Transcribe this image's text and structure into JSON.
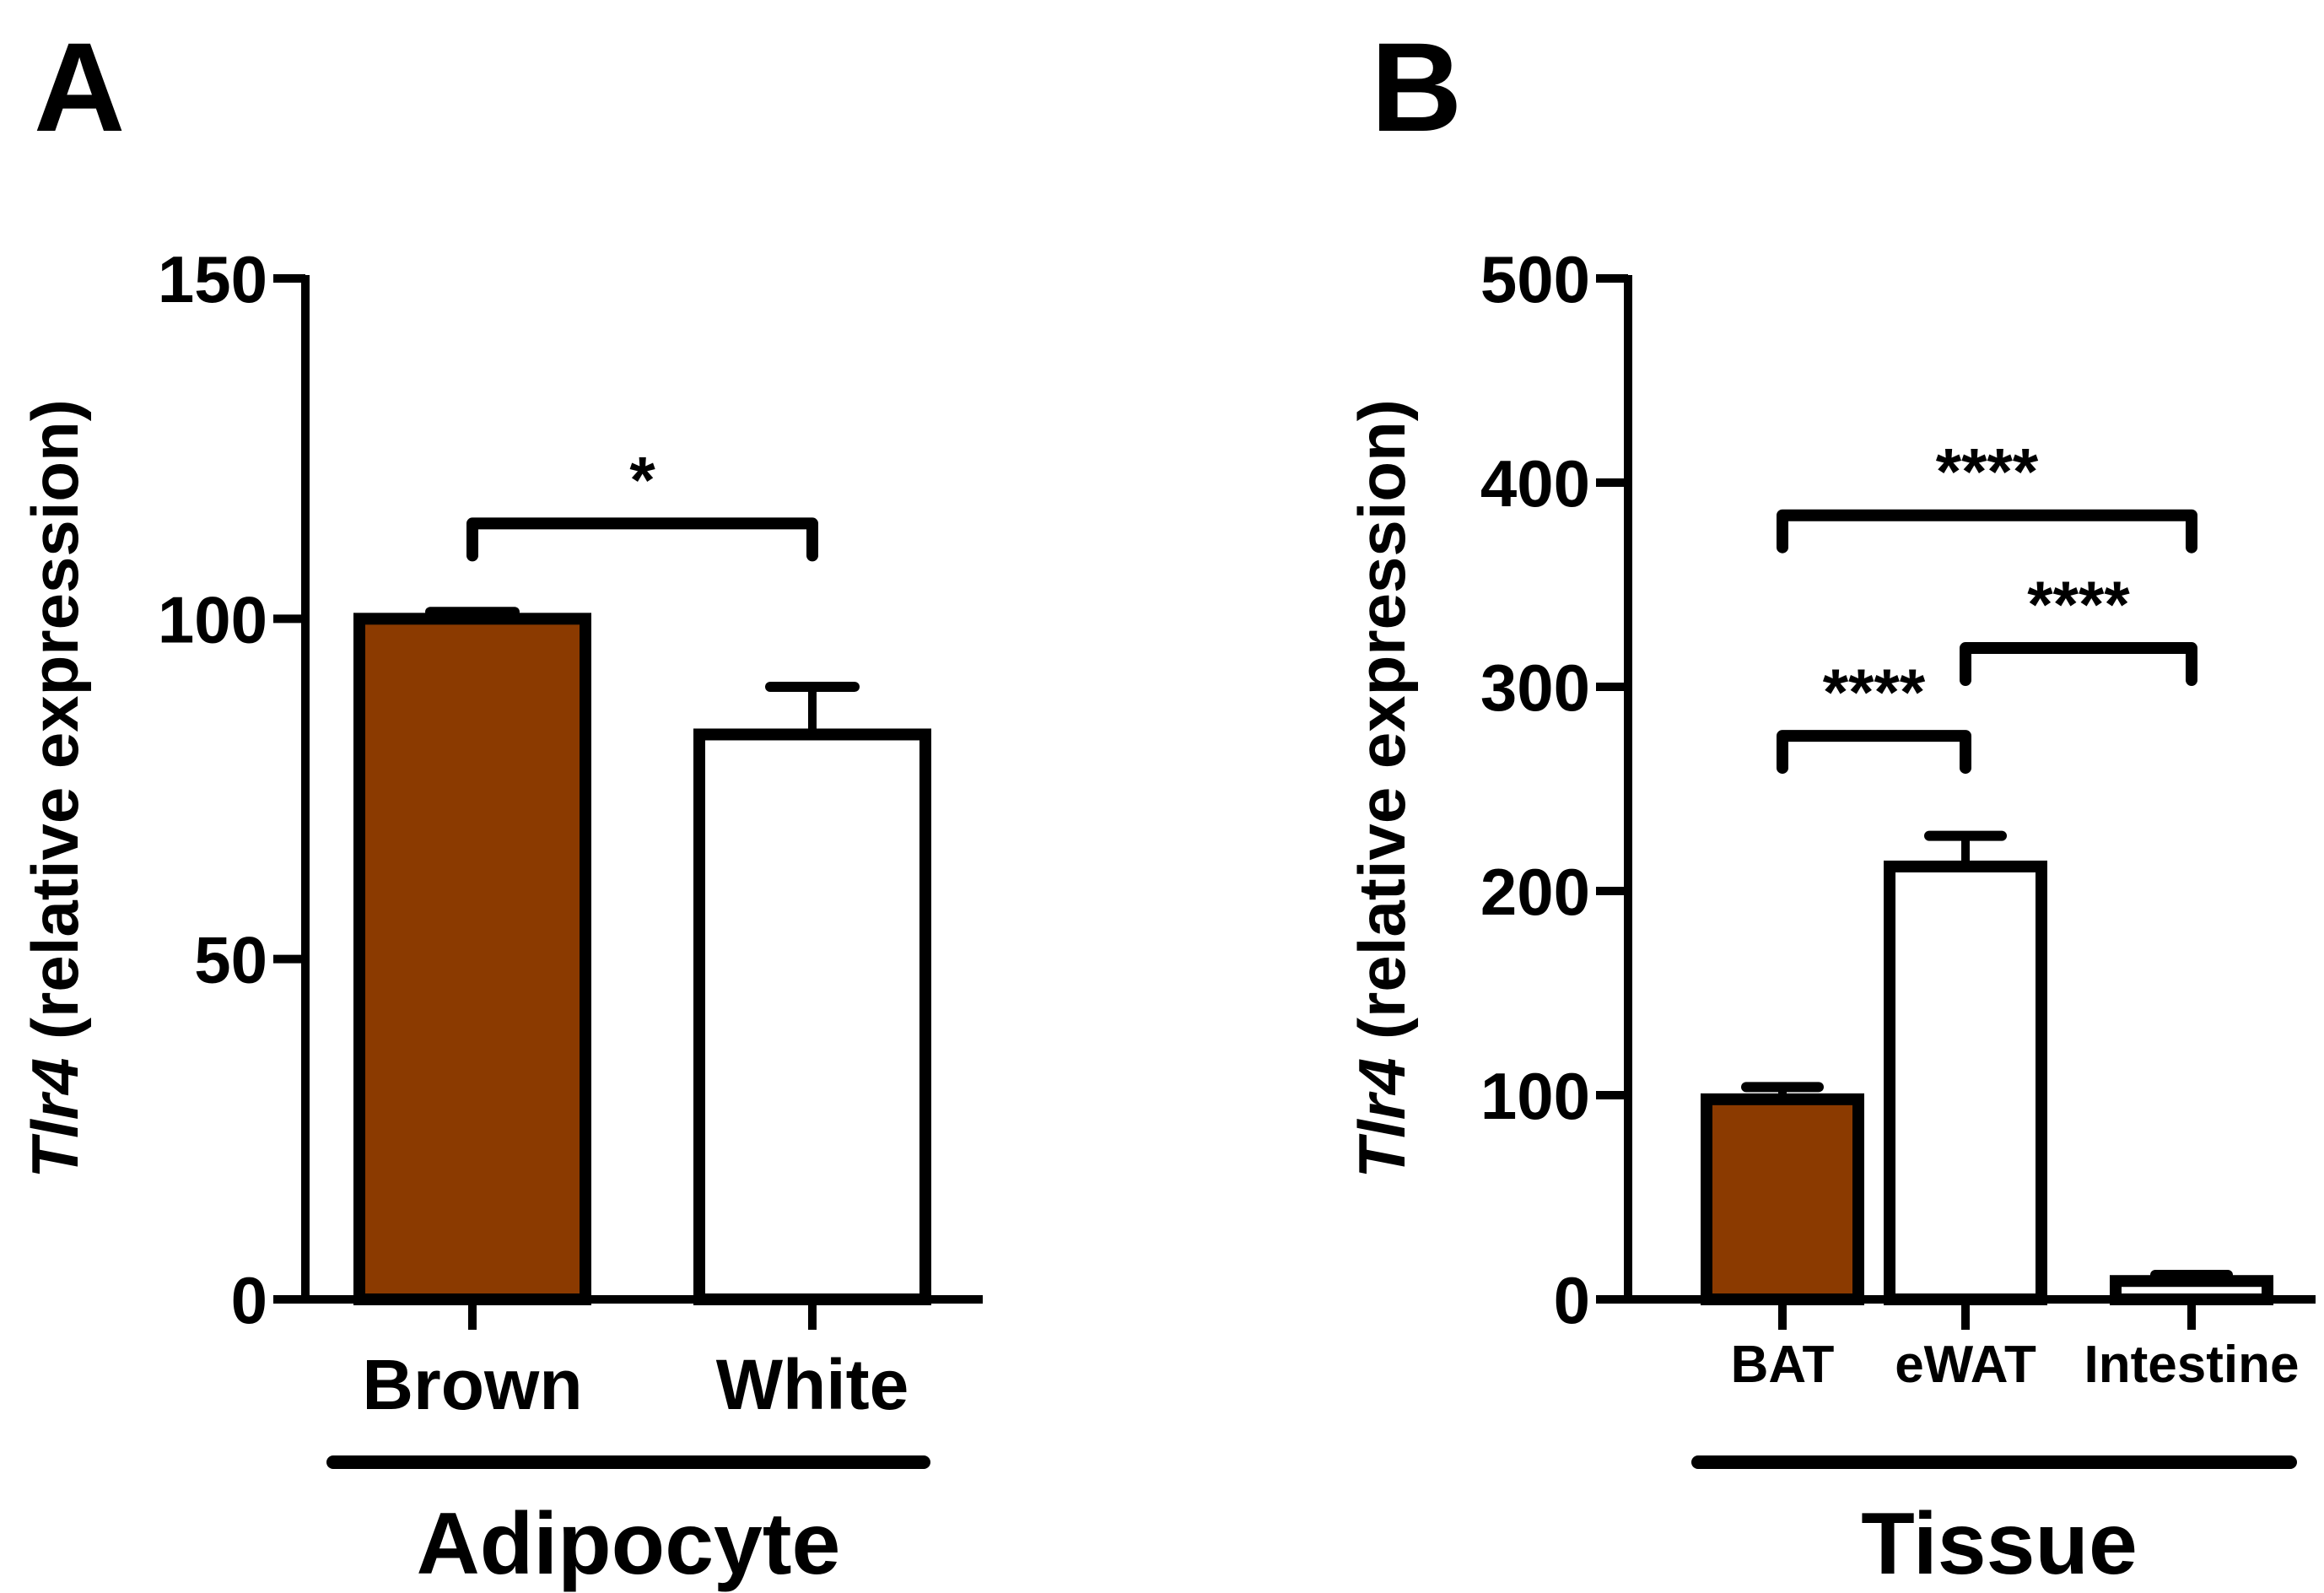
{
  "chart_data": [
    {
      "panel": "A",
      "type": "bar",
      "title": "",
      "ylabel_italic": "Tlr4",
      "ylabel_rest": " (relative expression)",
      "xlabel": "Adipocyte",
      "ylim": [
        0,
        150
      ],
      "yticks": [
        0,
        50,
        100,
        150
      ],
      "categories": [
        "Brown",
        "White"
      ],
      "values": [
        100,
        83
      ],
      "errors": [
        1,
        7
      ],
      "fills": [
        "#8b3a00",
        "#ffffff"
      ],
      "significance": [
        {
          "from": 0,
          "to": 1,
          "label": "*",
          "level": 114
        }
      ]
    },
    {
      "panel": "B",
      "type": "bar",
      "title": "",
      "ylabel_italic": "Tlr4",
      "ylabel_rest": " (relative expression)",
      "xlabel": "Tissue",
      "ylim": [
        0,
        500
      ],
      "yticks": [
        0,
        100,
        200,
        300,
        400,
        500
      ],
      "categories": [
        "BAT",
        "eWAT",
        "Intestine"
      ],
      "values": [
        98,
        212,
        9
      ],
      "errors": [
        6,
        15,
        3
      ],
      "fills": [
        "#8b3a00",
        "#ffffff",
        "#ffffff"
      ],
      "significance": [
        {
          "from": 0,
          "to": 1,
          "label": "****",
          "level": 276
        },
        {
          "from": 1,
          "to": 2,
          "label": "****",
          "level": 319
        },
        {
          "from": 0,
          "to": 2,
          "label": "****",
          "level": 384
        }
      ]
    }
  ]
}
